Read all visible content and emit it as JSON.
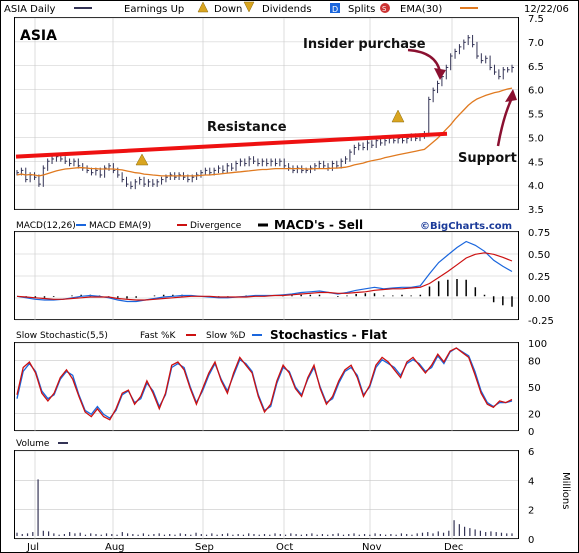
{
  "header": {
    "ticker_period": "ASIA Daily",
    "earnings_up": "Earnings Up",
    "earnings_down": "Down",
    "dividends": "Dividends",
    "splits": "Splits",
    "ema": "EMA(30)",
    "date": "12/22/06",
    "up_icon": "A",
    "down_icon": "V",
    "div_icon": "D",
    "split_icon": "S"
  },
  "colors": {
    "price_bar": "#333355",
    "ema": "#e07a20",
    "resistance": "#ee1111",
    "macd": "#1a66dd",
    "macd_ema": "#cc1111",
    "slow_k": "#cc1111",
    "slow_d": "#1a66dd",
    "annotation_arrow": "#8a1030",
    "earnings": "#d9a520",
    "grid": "#c8c8c8"
  },
  "chart_data": [
    {
      "type": "line",
      "title": "ASIA",
      "ylim": [
        3.5,
        7.5
      ],
      "y_ticks": [
        "3.5",
        "4.0",
        "4.5",
        "5.0",
        "5.5",
        "6.0",
        "6.5",
        "7.0",
        "7.5"
      ],
      "x_ticks": [
        "Jul",
        "Aug",
        "Sep",
        "Oct",
        "Nov",
        "Dec"
      ],
      "series": [
        {
          "values": [
            4.25,
            4.3,
            4.1,
            4.2,
            4.15,
            4.0,
            4.35,
            4.5,
            4.55,
            4.6,
            4.55,
            4.5,
            4.45,
            4.5,
            4.4,
            4.35,
            4.3,
            4.25,
            4.3,
            4.2,
            4.35,
            4.4,
            4.3,
            4.2,
            4.1,
            4.0,
            3.95,
            4.05,
            4.1,
            4.0,
            4.05,
            4.0,
            4.05,
            4.1,
            4.15,
            4.2,
            4.15,
            4.2,
            4.15,
            4.1,
            4.15,
            4.2,
            4.25,
            4.3,
            4.25,
            4.3,
            4.35,
            4.3,
            4.4,
            4.35,
            4.45,
            4.5,
            4.45,
            4.55,
            4.5,
            4.45,
            4.5,
            4.45,
            4.5,
            4.45,
            4.5,
            4.4,
            4.35,
            4.3,
            4.35,
            4.3,
            4.3,
            4.35,
            4.4,
            4.45,
            4.4,
            4.35,
            4.45,
            4.4,
            4.5,
            4.55,
            4.7,
            4.8,
            4.85,
            4.8,
            4.9,
            4.85,
            4.95,
            4.9,
            4.95,
            5.0,
            4.95,
            5.0,
            4.95,
            5.0,
            5.05,
            5.0,
            5.05,
            5.1,
            5.85,
            6.05,
            6.2,
            6.35,
            6.55,
            6.8,
            6.9,
            7.0,
            7.1,
            7.2,
            7.05,
            6.8,
            6.7,
            6.75,
            6.55,
            6.45,
            6.35,
            6.5,
            6.5,
            6.55
          ]
        },
        {
          "values": [
            4.2,
            4.22,
            4.2,
            4.21,
            4.2,
            4.18,
            4.2,
            4.23,
            4.26,
            4.29,
            4.31,
            4.33,
            4.34,
            4.35,
            4.36,
            4.36,
            4.35,
            4.34,
            4.34,
            4.33,
            4.33,
            4.33,
            4.33,
            4.32,
            4.31,
            4.29,
            4.27,
            4.25,
            4.24,
            4.22,
            4.21,
            4.2,
            4.19,
            4.18,
            4.18,
            4.18,
            4.18,
            4.18,
            4.18,
            4.18,
            4.18,
            4.18,
            4.19,
            4.2,
            4.2,
            4.21,
            4.22,
            4.23,
            4.24,
            4.25,
            4.26,
            4.27,
            4.28,
            4.29,
            4.3,
            4.31,
            4.32,
            4.32,
            4.33,
            4.34,
            4.34,
            4.34,
            4.34,
            4.34,
            4.34,
            4.34,
            4.33,
            4.33,
            4.34,
            4.34,
            4.34,
            4.34,
            4.35,
            4.35,
            4.36,
            4.37,
            4.39,
            4.42,
            4.44,
            4.46,
            4.49,
            4.51,
            4.53,
            4.55,
            4.58,
            4.6,
            4.62,
            4.64,
            4.66,
            4.68,
            4.7,
            4.72,
            4.74,
            4.76,
            4.84,
            4.92,
            5.0,
            5.1,
            5.2,
            5.3,
            5.42,
            5.52,
            5.62,
            5.72,
            5.8,
            5.86,
            5.9,
            5.94,
            5.97,
            6.0,
            6.02,
            6.05,
            6.08,
            6.1
          ]
        }
      ],
      "resistance": {
        "label": "Resistance",
        "from": 4.6,
        "to": 5.1
      },
      "annotations": [
        "Insider purchase",
        "Support"
      ]
    },
    {
      "type": "line",
      "title": "MACD's - Sell",
      "legend": [
        "MACD(12,26)",
        "MACD EMA(9)",
        "Divergence"
      ],
      "ylim": [
        -0.25,
        0.75
      ],
      "y_ticks": [
        "0.75",
        "0.50",
        "0.25",
        "0.00",
        "-0.25"
      ],
      "series": [
        {
          "name": "MACD(12,26)",
          "values": [
            0.0,
            -0.02,
            -0.04,
            -0.05,
            -0.05,
            -0.04,
            -0.02,
            0.0,
            0.01,
            0.0,
            -0.02,
            -0.05,
            -0.07,
            -0.07,
            -0.05,
            -0.03,
            -0.01,
            0.0,
            0.01,
            0.01,
            0.0,
            -0.01,
            -0.02,
            -0.02,
            -0.01,
            0.0,
            0.01,
            0.01,
            0.01,
            0.02,
            0.03,
            0.05,
            0.06,
            0.07,
            0.05,
            0.03,
            0.05,
            0.08,
            0.1,
            0.12,
            0.1,
            0.11,
            0.12,
            0.12,
            0.14,
            0.3,
            0.45,
            0.55,
            0.65,
            0.73,
            0.68,
            0.6,
            0.48,
            0.4,
            0.33
          ]
        },
        {
          "name": "MACD EMA(9)",
          "values": [
            0.0,
            -0.01,
            -0.02,
            -0.03,
            -0.04,
            -0.04,
            -0.03,
            -0.02,
            -0.01,
            -0.01,
            -0.01,
            -0.03,
            -0.04,
            -0.05,
            -0.05,
            -0.04,
            -0.03,
            -0.02,
            -0.01,
            0.0,
            0.0,
            0.0,
            -0.01,
            -0.01,
            -0.01,
            -0.01,
            0.0,
            0.0,
            0.01,
            0.01,
            0.02,
            0.03,
            0.04,
            0.05,
            0.05,
            0.04,
            0.04,
            0.05,
            0.06,
            0.08,
            0.09,
            0.1,
            0.1,
            0.11,
            0.12,
            0.17,
            0.25,
            0.33,
            0.42,
            0.51,
            0.56,
            0.58,
            0.56,
            0.52,
            0.47
          ]
        },
        {
          "name": "Divergence",
          "values": [
            0.0,
            -0.01,
            -0.02,
            -0.02,
            -0.01,
            0.0,
            0.01,
            0.02,
            0.02,
            0.01,
            -0.01,
            -0.02,
            -0.03,
            -0.02,
            0.0,
            0.01,
            0.02,
            0.02,
            0.02,
            0.01,
            0.0,
            -0.01,
            -0.01,
            -0.01,
            0.0,
            0.01,
            0.01,
            0.01,
            0.0,
            0.01,
            0.01,
            0.02,
            0.02,
            0.02,
            0.0,
            -0.01,
            0.01,
            0.03,
            0.04,
            0.04,
            0.01,
            0.01,
            0.02,
            0.01,
            0.02,
            0.13,
            0.2,
            0.22,
            0.23,
            0.22,
            0.12,
            0.02,
            -0.08,
            -0.12,
            -0.14
          ]
        }
      ]
    },
    {
      "type": "line",
      "title": "Stochastics - Flat",
      "legend": [
        "Slow Stochastic(5,5)",
        "Fast %K",
        "Slow %D"
      ],
      "ylim": [
        0,
        100
      ],
      "y_ticks": [
        "100",
        "80",
        "50",
        "20",
        "0"
      ],
      "series": [
        {
          "name": "Slow %D",
          "values": [
            35,
            70,
            80,
            70,
            45,
            35,
            40,
            60,
            70,
            65,
            40,
            20,
            15,
            25,
            15,
            10,
            20,
            40,
            45,
            30,
            35,
            55,
            45,
            25,
            40,
            75,
            80,
            75,
            50,
            30,
            45,
            65,
            80,
            60,
            45,
            65,
            85,
            80,
            70,
            40,
            20,
            25,
            55,
            75,
            70,
            50,
            40,
            60,
            75,
            50,
            30,
            35,
            55,
            70,
            75,
            65,
            40,
            50,
            75,
            85,
            80,
            75,
            65,
            80,
            85,
            80,
            70,
            75,
            90,
            80,
            95,
            100,
            95,
            90,
            70,
            45,
            30,
            25,
            30,
            30,
            32
          ]
        },
        {
          "name": "Fast %K",
          "values": [
            40,
            75,
            82,
            68,
            42,
            32,
            42,
            62,
            72,
            60,
            38,
            18,
            12,
            22,
            12,
            8,
            22,
            42,
            46,
            28,
            38,
            58,
            42,
            22,
            42,
            78,
            82,
            72,
            48,
            28,
            48,
            68,
            82,
            58,
            42,
            68,
            88,
            78,
            68,
            38,
            18,
            28,
            58,
            78,
            68,
            48,
            38,
            62,
            78,
            48,
            28,
            38,
            58,
            72,
            78,
            62,
            38,
            52,
            78,
            88,
            82,
            72,
            62,
            82,
            88,
            78,
            68,
            78,
            92,
            82,
            96,
            100,
            94,
            88,
            66,
            42,
            28,
            24,
            32,
            30,
            34
          ]
        }
      ]
    },
    {
      "type": "bar",
      "title": "Volume",
      "unit": "Millions",
      "ylim": [
        0,
        6
      ],
      "y_ticks": [
        "6",
        "4",
        "2",
        "0"
      ],
      "values": [
        0.25,
        0.15,
        0.2,
        0.3,
        4.3,
        0.4,
        0.35,
        0.2,
        0.1,
        0.15,
        0.3,
        0.2,
        0.25,
        0.1,
        0.2,
        0.15,
        0.1,
        0.2,
        0.15,
        0.1,
        0.3,
        0.2,
        0.15,
        0.1,
        0.2,
        0.1,
        0.15,
        0.2,
        0.1,
        0.15,
        0.1,
        0.2,
        0.15,
        0.1,
        0.25,
        0.15,
        0.1,
        0.2,
        0.1,
        0.15,
        0.2,
        0.1,
        0.15,
        0.1,
        0.2,
        0.15,
        0.1,
        0.15,
        0.1,
        0.2,
        0.15,
        0.1,
        0.2,
        0.15,
        0.1,
        0.15,
        0.2,
        0.1,
        0.15,
        0.1,
        0.15,
        0.2,
        0.1,
        0.15,
        0.2,
        0.1,
        0.15,
        0.1,
        0.2,
        0.15,
        0.1,
        0.15,
        0.1,
        0.2,
        0.15,
        0.1,
        0.2,
        0.25,
        0.3,
        0.2,
        0.35,
        0.25,
        0.4,
        1.2,
        0.9,
        0.7,
        0.6,
        0.5,
        0.4,
        0.3,
        0.35,
        0.3,
        0.25,
        0.2,
        0.2
      ]
    }
  ],
  "watermark": "©BigCharts.com"
}
